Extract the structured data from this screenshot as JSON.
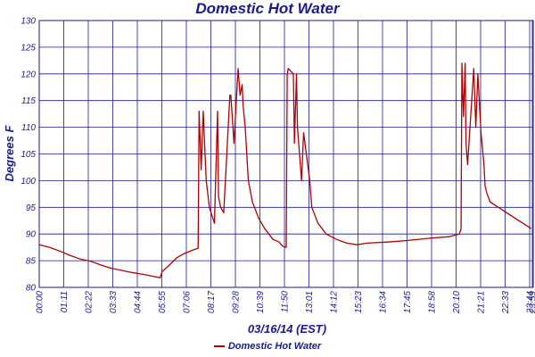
{
  "chart_data": {
    "type": "line",
    "title": "Domestic Hot Water",
    "xlabel": "03/16/14 (EST)",
    "ylabel": "Degrees F",
    "ylim": [
      80,
      130
    ],
    "yticks": [
      80,
      85,
      90,
      95,
      100,
      105,
      110,
      115,
      120,
      125,
      130
    ],
    "xlim_hours": [
      0,
      24.1
    ],
    "xticks": [
      "00:00",
      "01:11",
      "02:22",
      "03:33",
      "04:44",
      "05:55",
      "07:06",
      "08:17",
      "09:28",
      "10:39",
      "11:50",
      "13:01",
      "14:12",
      "15:23",
      "16:34",
      "17:45",
      "18:58",
      "20:10",
      "21:21",
      "22:33",
      "23:44",
      "23:59"
    ],
    "grid": true,
    "legend_position": "bottom",
    "series_color": "#b00000",
    "series": [
      {
        "name": "Domestic Hot Water",
        "x": [
          0.0,
          0.5,
          1.0,
          1.5,
          2.0,
          2.5,
          3.0,
          3.5,
          4.0,
          4.5,
          5.0,
          5.5,
          5.9,
          6.0,
          6.3,
          6.7,
          7.0,
          7.5,
          7.75,
          7.8,
          7.9,
          8.0,
          8.1,
          8.15,
          8.3,
          8.55,
          8.7,
          8.75,
          8.85,
          9.0,
          9.3,
          9.35,
          9.5,
          9.7,
          9.8,
          9.9,
          9.95,
          10.05,
          10.2,
          10.4,
          10.7,
          11.0,
          11.4,
          11.7,
          11.85,
          12.0,
          12.05,
          12.1,
          12.15,
          12.4,
          12.45,
          12.55,
          12.6,
          12.8,
          12.9,
          13.2,
          13.3,
          13.6,
          14.0,
          14.5,
          15.0,
          15.5,
          16.0,
          17.0,
          18.0,
          19.0,
          20.0,
          20.5,
          20.58,
          20.62,
          20.7,
          20.78,
          20.82,
          20.9,
          21.2,
          21.3,
          21.4,
          21.55,
          21.7,
          21.75,
          21.85,
          22.0,
          22.4,
          22.8,
          23.2,
          23.6,
          24.0
        ],
        "y": [
          88,
          87.5,
          86.8,
          86,
          85.3,
          84.9,
          84.2,
          83.6,
          83.2,
          82.8,
          82.5,
          82.1,
          81.8,
          83,
          84,
          85.5,
          86.2,
          87,
          87.3,
          113,
          102,
          113,
          104,
          100,
          95,
          92,
          113,
          97,
          95,
          94,
          116,
          116,
          107,
          121,
          116,
          118,
          114,
          110,
          100,
          96,
          93,
          91,
          89,
          88.5,
          87.8,
          87.5,
          87.5,
          120,
          121,
          120,
          107,
          120,
          110,
          100,
          109,
          100,
          95,
          92,
          90,
          89,
          88.3,
          88,
          88.3,
          88.5,
          88.8,
          89.2,
          89.5,
          90,
          91,
          122,
          112,
          122,
          107,
          103,
          121,
          110,
          120,
          109,
          103,
          99,
          97.5,
          96,
          95,
          94,
          93,
          92,
          91
        ]
      }
    ]
  },
  "legend_label": "Domestic Hot Water"
}
